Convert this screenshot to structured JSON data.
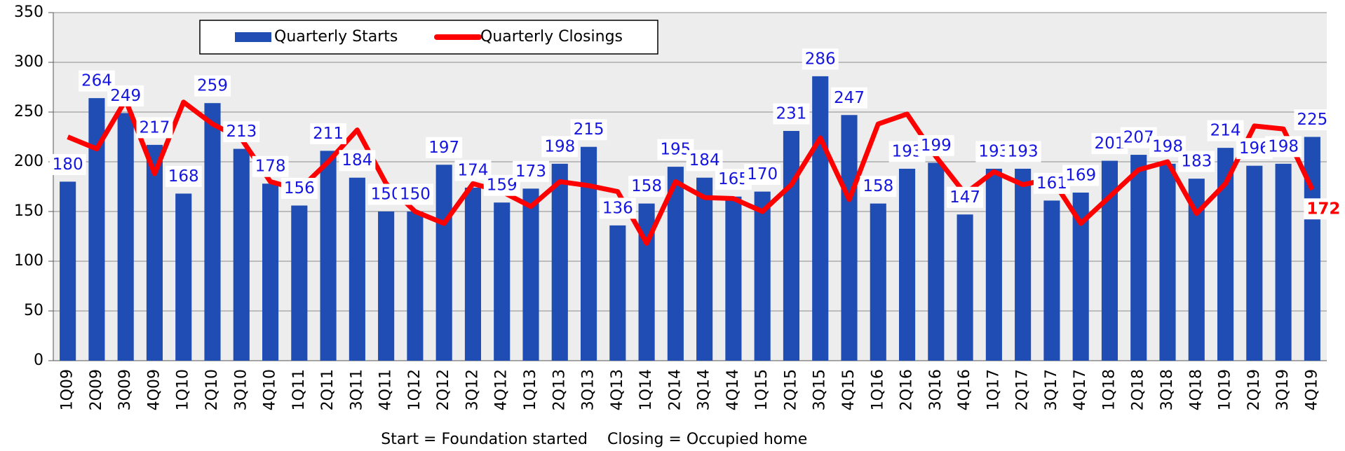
{
  "chart_data": {
    "type": "bar_line",
    "categories": [
      "1Q09",
      "2Q09",
      "3Q09",
      "4Q09",
      "1Q10",
      "2Q10",
      "3Q10",
      "4Q10",
      "1Q11",
      "2Q11",
      "3Q11",
      "4Q11",
      "1Q12",
      "2Q12",
      "3Q12",
      "4Q12",
      "1Q13",
      "2Q13",
      "3Q13",
      "4Q13",
      "1Q14",
      "2Q14",
      "3Q14",
      "4Q14",
      "1Q15",
      "2Q15",
      "3Q15",
      "4Q15",
      "1Q16",
      "2Q16",
      "3Q16",
      "4Q16",
      "1Q17",
      "2Q17",
      "3Q17",
      "4Q17",
      "1Q18",
      "2Q18",
      "3Q18",
      "4Q18",
      "1Q19",
      "2Q19",
      "3Q19",
      "4Q19"
    ],
    "series": [
      {
        "name": "Quarterly Starts",
        "color": "#1f4db3",
        "kind": "bar",
        "values": [
          180,
          264,
          249,
          217,
          168,
          259,
          213,
          178,
          156,
          211,
          184,
          150,
          150,
          197,
          174,
          159,
          173,
          198,
          215,
          136,
          158,
          195,
          184,
          165,
          170,
          231,
          286,
          247,
          158,
          193,
          199,
          147,
          193,
          193,
          161,
          169,
          201,
          207,
          198,
          183,
          214,
          196,
          198,
          225
        ]
      },
      {
        "name": "Quarterly Closings",
        "color": "#ff0000",
        "kind": "line",
        "values": [
          225,
          213,
          262,
          188,
          260,
          238,
          223,
          180,
          172,
          200,
          232,
          178,
          150,
          138,
          178,
          170,
          155,
          180,
          176,
          170,
          118,
          180,
          164,
          163,
          150,
          177,
          224,
          162,
          238,
          248,
          205,
          168,
          190,
          177,
          183,
          138,
          165,
          192,
          200,
          148,
          178,
          236,
          233,
          172
        ]
      }
    ],
    "ylim": [
      0,
      350
    ],
    "yticks": [
      0,
      50,
      100,
      150,
      200,
      250,
      300,
      350
    ],
    "grid": true,
    "footnotes": [
      "Start = Foundation started",
      "Closing = Occupied home"
    ]
  }
}
